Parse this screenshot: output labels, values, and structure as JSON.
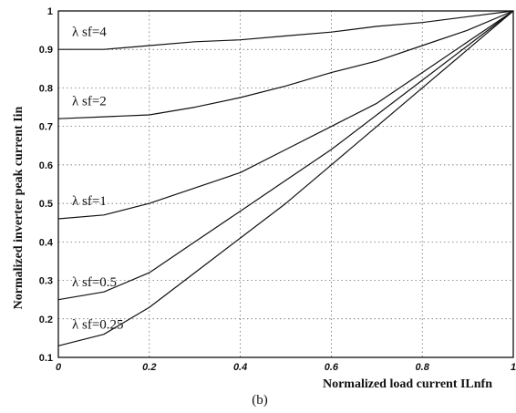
{
  "chart_data": {
    "type": "line",
    "title": "",
    "xlabel": "Normalized load current ILnfn",
    "ylabel": "Normalized inverter peak current Iin",
    "caption": "(b)",
    "xlim": [
      0,
      1
    ],
    "ylim": [
      0.1,
      1
    ],
    "grid": true,
    "x_ticks": [
      "0",
      "0.2",
      "0.4",
      "0.6",
      "0.8",
      "1"
    ],
    "y_ticks": [
      "0.1",
      "0.2",
      "0.3",
      "0.4",
      "0.5",
      "0.6",
      "0.7",
      "0.8",
      "0.9",
      "1"
    ],
    "series": [
      {
        "name": "λ sf=4",
        "x": [
          0,
          0.1,
          0.2,
          0.3,
          0.4,
          0.5,
          0.6,
          0.7,
          0.8,
          0.9,
          1.0
        ],
        "y": [
          0.9,
          0.9,
          0.91,
          0.92,
          0.925,
          0.935,
          0.945,
          0.96,
          0.97,
          0.985,
          1.0
        ]
      },
      {
        "name": "λ sf=2",
        "x": [
          0,
          0.1,
          0.2,
          0.3,
          0.4,
          0.5,
          0.6,
          0.7,
          0.8,
          0.9,
          1.0
        ],
        "y": [
          0.72,
          0.725,
          0.73,
          0.75,
          0.775,
          0.805,
          0.84,
          0.87,
          0.91,
          0.95,
          1.0
        ]
      },
      {
        "name": "λ sf=1",
        "x": [
          0,
          0.1,
          0.2,
          0.3,
          0.4,
          0.5,
          0.6,
          0.7,
          0.8,
          0.9,
          1.0
        ],
        "y": [
          0.46,
          0.47,
          0.5,
          0.54,
          0.58,
          0.64,
          0.7,
          0.76,
          0.84,
          0.92,
          1.0
        ]
      },
      {
        "name": "λ sf=0.5",
        "x": [
          0,
          0.1,
          0.2,
          0.3,
          0.4,
          0.5,
          0.6,
          0.7,
          0.8,
          0.9,
          1.0
        ],
        "y": [
          0.25,
          0.27,
          0.32,
          0.4,
          0.48,
          0.56,
          0.64,
          0.73,
          0.82,
          0.91,
          1.0
        ]
      },
      {
        "name": "λ sf=0.25",
        "x": [
          0,
          0.1,
          0.2,
          0.3,
          0.4,
          0.5,
          0.6,
          0.7,
          0.8,
          0.9,
          1.0
        ],
        "y": [
          0.13,
          0.16,
          0.23,
          0.32,
          0.41,
          0.5,
          0.6,
          0.7,
          0.8,
          0.9,
          1.0
        ]
      }
    ]
  }
}
